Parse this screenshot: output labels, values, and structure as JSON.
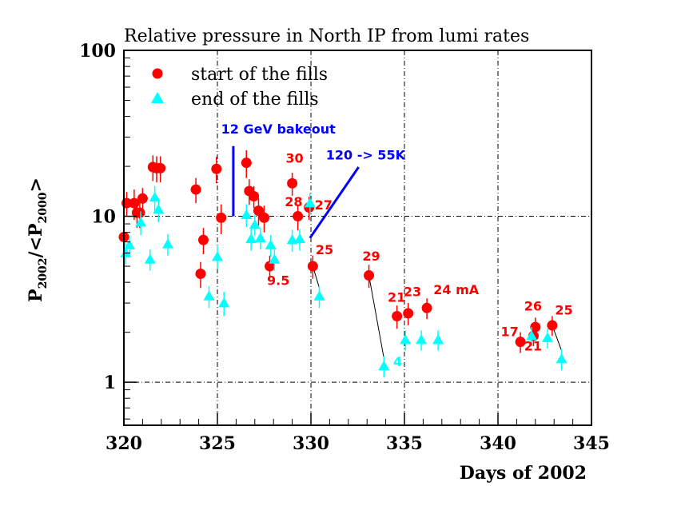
{
  "chart_data": {
    "type": "scatter",
    "title": "Relative pressure in North IP from lumi rates",
    "xlabel": "Days of 2002",
    "ylabel": {
      "base": "P",
      "sub1": "2002",
      "mid": "/<P",
      "sub2": "2000",
      "end": ">"
    },
    "xlim": [
      320,
      345
    ],
    "ylim": [
      0.55,
      100
    ],
    "yscale": "log",
    "grid": true,
    "legend_placement": "top-left",
    "x_ticks": [
      "320",
      "325",
      "330",
      "335",
      "340",
      "345"
    ],
    "y_ticks": [
      "1",
      "10",
      "100"
    ],
    "series": [
      {
        "name": "start of the fills",
        "color": "#ff0000",
        "marker": "circle",
        "points": [
          [
            320.0,
            7.5,
            1.2
          ],
          [
            320.15,
            12.0,
            2.0
          ],
          [
            320.55,
            12.0,
            2.5
          ],
          [
            320.7,
            10.5,
            2.0
          ],
          [
            320.85,
            10.5,
            2.0
          ],
          [
            321.0,
            12.8,
            2.0
          ],
          [
            321.55,
            19.8,
            3.5
          ],
          [
            321.75,
            19.5,
            3.5
          ],
          [
            321.95,
            19.5,
            3.5
          ],
          [
            323.85,
            14.5,
            2.5
          ],
          [
            324.1,
            4.5,
            0.8
          ],
          [
            324.25,
            7.2,
            1.3
          ],
          [
            324.95,
            19.3,
            3.5
          ],
          [
            325.2,
            9.8,
            2.0
          ],
          [
            326.55,
            21.0,
            4.0
          ],
          [
            326.7,
            14.2,
            2.5
          ],
          [
            326.95,
            13.2,
            2.0
          ],
          [
            327.2,
            10.8,
            2.0
          ],
          [
            327.5,
            9.8,
            1.8
          ],
          [
            327.8,
            5.0,
            0.8
          ],
          [
            329.0,
            15.8,
            2.5
          ],
          [
            329.3,
            10.0,
            1.8
          ],
          [
            329.9,
            11.3,
            1.8
          ],
          [
            330.1,
            5.0,
            0.8
          ],
          [
            333.1,
            4.4,
            0.7
          ],
          [
            334.6,
            2.5,
            0.4
          ],
          [
            335.2,
            2.6,
            0.4
          ],
          [
            336.2,
            2.8,
            0.4
          ],
          [
            341.2,
            1.75,
            0.25
          ],
          [
            341.9,
            1.9,
            0.25
          ],
          [
            342.0,
            2.15,
            0.3
          ],
          [
            342.9,
            2.2,
            0.3
          ]
        ]
      },
      {
        "name": "end of the fills",
        "color": "#00ffff",
        "marker": "triangle",
        "points": [
          [
            320.1,
            6.0,
            0.9
          ],
          [
            320.3,
            6.7,
            1.0
          ],
          [
            320.9,
            9.2,
            1.5
          ],
          [
            321.4,
            5.5,
            0.8
          ],
          [
            321.65,
            13.0,
            2.2
          ],
          [
            321.85,
            11.0,
            1.8
          ],
          [
            322.35,
            6.8,
            1.0
          ],
          [
            324.55,
            3.3,
            0.5
          ],
          [
            325.0,
            5.7,
            0.9
          ],
          [
            325.35,
            3.0,
            0.5
          ],
          [
            326.55,
            10.2,
            1.6
          ],
          [
            326.8,
            7.3,
            1.1
          ],
          [
            327.0,
            8.9,
            1.3
          ],
          [
            327.3,
            7.4,
            1.1
          ],
          [
            327.85,
            6.7,
            1.0
          ],
          [
            328.05,
            5.5,
            0.8
          ],
          [
            329.0,
            7.2,
            1.1
          ],
          [
            329.4,
            7.3,
            1.1
          ],
          [
            329.95,
            12.0,
            1.8
          ],
          [
            330.45,
            3.3,
            0.5
          ],
          [
            333.9,
            1.25,
            0.18
          ],
          [
            335.05,
            1.8,
            0.25
          ],
          [
            335.9,
            1.8,
            0.25
          ],
          [
            336.8,
            1.8,
            0.25
          ],
          [
            341.8,
            1.9,
            0.25
          ],
          [
            342.65,
            1.85,
            0.25
          ],
          [
            343.4,
            1.38,
            0.2
          ]
        ]
      }
    ],
    "connectors": [
      [
        [
          330.1,
          5.0
        ],
        [
          330.45,
          3.7
        ]
      ],
      [
        [
          333.1,
          4.4
        ],
        [
          333.9,
          1.4
        ]
      ],
      [
        [
          342.9,
          2.2
        ],
        [
          343.4,
          1.55
        ]
      ]
    ],
    "markers": [
      {
        "type": "vertical-line",
        "x": 325.85,
        "y1": 10,
        "y2": 26.5
      },
      {
        "type": "diagonal-line",
        "x1": 329.95,
        "y1": 7.4,
        "x2": 332.55,
        "y2": 19.8
      }
    ],
    "annotations": [
      {
        "text": "12 GeV bakeout",
        "x": 325.2,
        "y": 31.5,
        "color": "#0000ff"
      },
      {
        "text": "120 -> 55K",
        "x": 330.8,
        "y": 22.0,
        "color": "#0000ff"
      },
      {
        "text": "30",
        "x": 328.65,
        "y": 21.0,
        "color": "#ff0000"
      },
      {
        "text": "28",
        "x": 328.6,
        "y": 11.5,
        "color": "#ff0000"
      },
      {
        "text": "27",
        "x": 330.2,
        "y": 11.0,
        "color": "#ff0000"
      },
      {
        "text": "25",
        "x": 330.25,
        "y": 5.9,
        "color": "#ff0000"
      },
      {
        "text": "9.5",
        "x": 327.65,
        "y": 3.85,
        "color": "#ff0000"
      },
      {
        "text": "29",
        "x": 332.75,
        "y": 5.4,
        "color": "#ff0000"
      },
      {
        "text": "21",
        "x": 334.1,
        "y": 3.05,
        "color": "#ff0000"
      },
      {
        "text": "23",
        "x": 334.95,
        "y": 3.3,
        "color": "#ff0000"
      },
      {
        "text": "24 mA",
        "x": 336.55,
        "y": 3.4,
        "color": "#ff0000"
      },
      {
        "text": "4",
        "x": 334.4,
        "y": 1.25,
        "color": "#00ffff"
      },
      {
        "text": "17",
        "x": 340.15,
        "y": 1.9,
        "color": "#ff0000"
      },
      {
        "text": "26",
        "x": 341.4,
        "y": 2.7,
        "color": "#ff0000"
      },
      {
        "text": "21",
        "x": 341.4,
        "y": 1.55,
        "color": "#ff0000"
      },
      {
        "text": "25",
        "x": 343.05,
        "y": 2.55,
        "color": "#ff0000"
      }
    ]
  }
}
